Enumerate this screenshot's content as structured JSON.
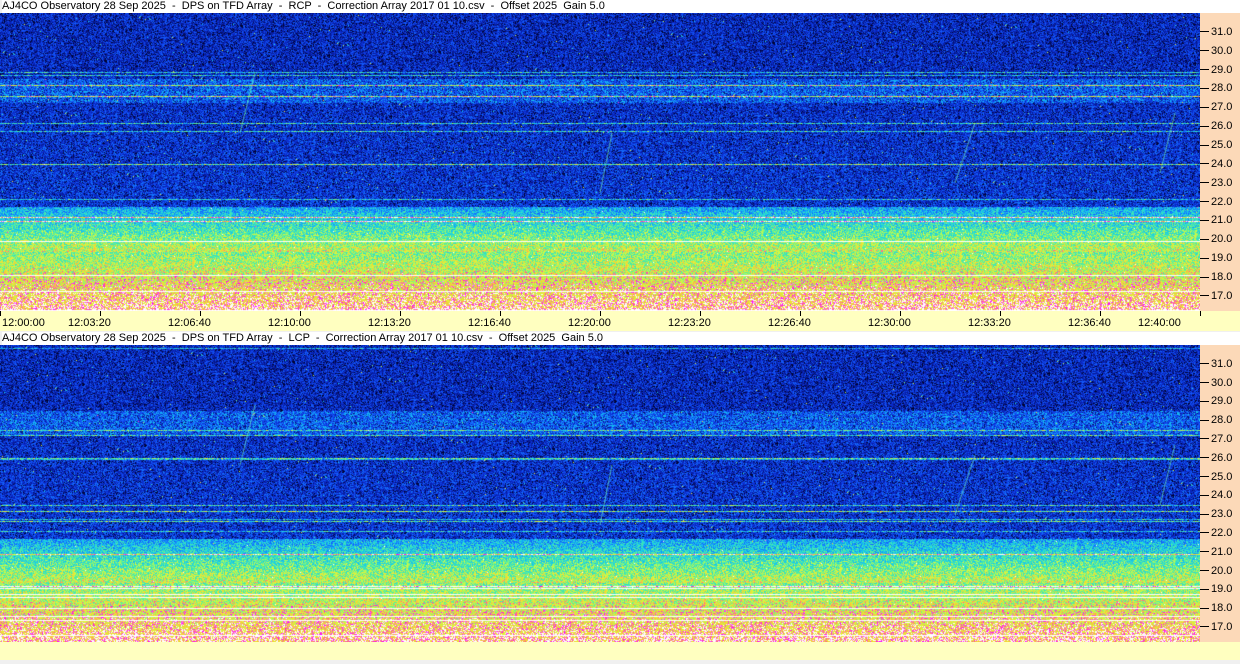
{
  "chart_data": [
    {
      "type": "heatmap",
      "title": "AJ4CO Observatory 28 Sep 2025  -  DPS on TFD Array  -  RCP  -  Correction Array 2017 01 10.csv  -  Offset 2025  Gain 5.0",
      "y_ticks": [
        "31.0",
        "30.0",
        "29.0",
        "28.0",
        "27.0",
        "26.0",
        "25.0",
        "24.0",
        "23.0",
        "22.0",
        "21.0",
        "20.0",
        "19.0",
        "18.0",
        "17.0"
      ],
      "ylim": [
        16.2,
        32.0
      ],
      "x_ticks": [
        "12:00:00",
        "12:03:20",
        "12:06:40",
        "12:10:00",
        "12:13:20",
        "12:16:40",
        "12:20:00",
        "12:23:20",
        "12:26:40",
        "12:30:00",
        "12:33:20",
        "12:36:40",
        "12:40:00"
      ],
      "xlim": [
        "12:00:00",
        "12:40:00"
      ],
      "polarization": "RCP"
    },
    {
      "type": "heatmap",
      "title": "AJ4CO Observatory 28 Sep 2025  -  DPS on TFD Array  -  LCP  -  Correction Array 2017 01 10.csv  -  Offset 2025  Gain 5.0",
      "y_ticks": [
        "31.0",
        "30.0",
        "29.0",
        "28.0",
        "27.0",
        "26.0",
        "25.0",
        "24.0",
        "23.0",
        "22.0",
        "21.0",
        "20.0",
        "19.0",
        "18.0",
        "17.0"
      ],
      "ylim": [
        16.2,
        32.0
      ],
      "polarization": "LCP"
    }
  ],
  "colors": {
    "low": "#000030",
    "mid": "#1050ff",
    "high": "#ffff40",
    "peak": "#ff00ff",
    "freq_axis_bg": "#fcd9b8",
    "time_axis_bg": "#ffffc0"
  }
}
